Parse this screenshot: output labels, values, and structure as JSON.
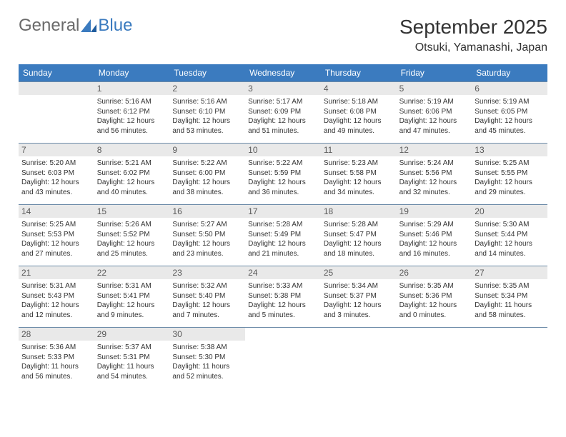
{
  "logo": {
    "general": "General",
    "blue": "Blue"
  },
  "title": "September 2025",
  "location": "Otsuki, Yamanashi, Japan",
  "colors": {
    "header_bg": "#3b7bbf",
    "header_text": "#ffffff",
    "day_row_bg": "#e9e9e9",
    "day_row_text": "#5a5a5a",
    "border": "#6b8aa8",
    "body_text": "#333333"
  },
  "weekdays": [
    "Sunday",
    "Monday",
    "Tuesday",
    "Wednesday",
    "Thursday",
    "Friday",
    "Saturday"
  ],
  "start_blank": 1,
  "days": [
    {
      "n": "1",
      "sunrise": "Sunrise: 5:16 AM",
      "sunset": "Sunset: 6:12 PM",
      "dl1": "Daylight: 12 hours",
      "dl2": "and 56 minutes."
    },
    {
      "n": "2",
      "sunrise": "Sunrise: 5:16 AM",
      "sunset": "Sunset: 6:10 PM",
      "dl1": "Daylight: 12 hours",
      "dl2": "and 53 minutes."
    },
    {
      "n": "3",
      "sunrise": "Sunrise: 5:17 AM",
      "sunset": "Sunset: 6:09 PM",
      "dl1": "Daylight: 12 hours",
      "dl2": "and 51 minutes."
    },
    {
      "n": "4",
      "sunrise": "Sunrise: 5:18 AM",
      "sunset": "Sunset: 6:08 PM",
      "dl1": "Daylight: 12 hours",
      "dl2": "and 49 minutes."
    },
    {
      "n": "5",
      "sunrise": "Sunrise: 5:19 AM",
      "sunset": "Sunset: 6:06 PM",
      "dl1": "Daylight: 12 hours",
      "dl2": "and 47 minutes."
    },
    {
      "n": "6",
      "sunrise": "Sunrise: 5:19 AM",
      "sunset": "Sunset: 6:05 PM",
      "dl1": "Daylight: 12 hours",
      "dl2": "and 45 minutes."
    },
    {
      "n": "7",
      "sunrise": "Sunrise: 5:20 AM",
      "sunset": "Sunset: 6:03 PM",
      "dl1": "Daylight: 12 hours",
      "dl2": "and 43 minutes."
    },
    {
      "n": "8",
      "sunrise": "Sunrise: 5:21 AM",
      "sunset": "Sunset: 6:02 PM",
      "dl1": "Daylight: 12 hours",
      "dl2": "and 40 minutes."
    },
    {
      "n": "9",
      "sunrise": "Sunrise: 5:22 AM",
      "sunset": "Sunset: 6:00 PM",
      "dl1": "Daylight: 12 hours",
      "dl2": "and 38 minutes."
    },
    {
      "n": "10",
      "sunrise": "Sunrise: 5:22 AM",
      "sunset": "Sunset: 5:59 PM",
      "dl1": "Daylight: 12 hours",
      "dl2": "and 36 minutes."
    },
    {
      "n": "11",
      "sunrise": "Sunrise: 5:23 AM",
      "sunset": "Sunset: 5:58 PM",
      "dl1": "Daylight: 12 hours",
      "dl2": "and 34 minutes."
    },
    {
      "n": "12",
      "sunrise": "Sunrise: 5:24 AM",
      "sunset": "Sunset: 5:56 PM",
      "dl1": "Daylight: 12 hours",
      "dl2": "and 32 minutes."
    },
    {
      "n": "13",
      "sunrise": "Sunrise: 5:25 AM",
      "sunset": "Sunset: 5:55 PM",
      "dl1": "Daylight: 12 hours",
      "dl2": "and 29 minutes."
    },
    {
      "n": "14",
      "sunrise": "Sunrise: 5:25 AM",
      "sunset": "Sunset: 5:53 PM",
      "dl1": "Daylight: 12 hours",
      "dl2": "and 27 minutes."
    },
    {
      "n": "15",
      "sunrise": "Sunrise: 5:26 AM",
      "sunset": "Sunset: 5:52 PM",
      "dl1": "Daylight: 12 hours",
      "dl2": "and 25 minutes."
    },
    {
      "n": "16",
      "sunrise": "Sunrise: 5:27 AM",
      "sunset": "Sunset: 5:50 PM",
      "dl1": "Daylight: 12 hours",
      "dl2": "and 23 minutes."
    },
    {
      "n": "17",
      "sunrise": "Sunrise: 5:28 AM",
      "sunset": "Sunset: 5:49 PM",
      "dl1": "Daylight: 12 hours",
      "dl2": "and 21 minutes."
    },
    {
      "n": "18",
      "sunrise": "Sunrise: 5:28 AM",
      "sunset": "Sunset: 5:47 PM",
      "dl1": "Daylight: 12 hours",
      "dl2": "and 18 minutes."
    },
    {
      "n": "19",
      "sunrise": "Sunrise: 5:29 AM",
      "sunset": "Sunset: 5:46 PM",
      "dl1": "Daylight: 12 hours",
      "dl2": "and 16 minutes."
    },
    {
      "n": "20",
      "sunrise": "Sunrise: 5:30 AM",
      "sunset": "Sunset: 5:44 PM",
      "dl1": "Daylight: 12 hours",
      "dl2": "and 14 minutes."
    },
    {
      "n": "21",
      "sunrise": "Sunrise: 5:31 AM",
      "sunset": "Sunset: 5:43 PM",
      "dl1": "Daylight: 12 hours",
      "dl2": "and 12 minutes."
    },
    {
      "n": "22",
      "sunrise": "Sunrise: 5:31 AM",
      "sunset": "Sunset: 5:41 PM",
      "dl1": "Daylight: 12 hours",
      "dl2": "and 9 minutes."
    },
    {
      "n": "23",
      "sunrise": "Sunrise: 5:32 AM",
      "sunset": "Sunset: 5:40 PM",
      "dl1": "Daylight: 12 hours",
      "dl2": "and 7 minutes."
    },
    {
      "n": "24",
      "sunrise": "Sunrise: 5:33 AM",
      "sunset": "Sunset: 5:38 PM",
      "dl1": "Daylight: 12 hours",
      "dl2": "and 5 minutes."
    },
    {
      "n": "25",
      "sunrise": "Sunrise: 5:34 AM",
      "sunset": "Sunset: 5:37 PM",
      "dl1": "Daylight: 12 hours",
      "dl2": "and 3 minutes."
    },
    {
      "n": "26",
      "sunrise": "Sunrise: 5:35 AM",
      "sunset": "Sunset: 5:36 PM",
      "dl1": "Daylight: 12 hours",
      "dl2": "and 0 minutes."
    },
    {
      "n": "27",
      "sunrise": "Sunrise: 5:35 AM",
      "sunset": "Sunset: 5:34 PM",
      "dl1": "Daylight: 11 hours",
      "dl2": "and 58 minutes."
    },
    {
      "n": "28",
      "sunrise": "Sunrise: 5:36 AM",
      "sunset": "Sunset: 5:33 PM",
      "dl1": "Daylight: 11 hours",
      "dl2": "and 56 minutes."
    },
    {
      "n": "29",
      "sunrise": "Sunrise: 5:37 AM",
      "sunset": "Sunset: 5:31 PM",
      "dl1": "Daylight: 11 hours",
      "dl2": "and 54 minutes."
    },
    {
      "n": "30",
      "sunrise": "Sunrise: 5:38 AM",
      "sunset": "Sunset: 5:30 PM",
      "dl1": "Daylight: 11 hours",
      "dl2": "and 52 minutes."
    }
  ]
}
